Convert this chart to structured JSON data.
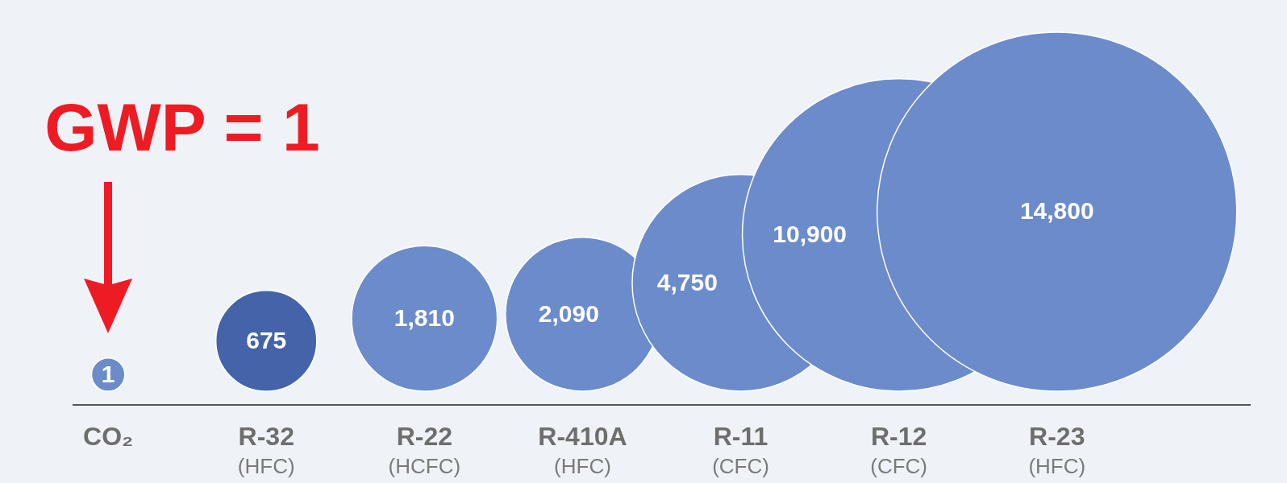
{
  "chart_data": {
    "type": "other",
    "categories": [
      "CO₂",
      "R-32\n(HFC)",
      "R-22\n(HCFC)",
      "R-410A\n(HFC)",
      "R-11\n(CFC)",
      "R-12\n(CFC)",
      "R-23\n(HFC)"
    ],
    "values": [
      1,
      675,
      1810,
      2090,
      4750,
      10900,
      14800
    ],
    "value_labels": [
      "1",
      "675",
      "1,810",
      "2,090",
      "4,750",
      "10,900",
      "14,800"
    ],
    "colors": [
      "#6b8bcb",
      "#4463a8",
      "#6b8bcb",
      "#6b8bcb",
      "#6b8bcb",
      "#6b8bcb",
      "#6b8bcb"
    ],
    "annotations": [
      {
        "text": "GWP = 1",
        "x": "CO₂"
      }
    ]
  }
}
